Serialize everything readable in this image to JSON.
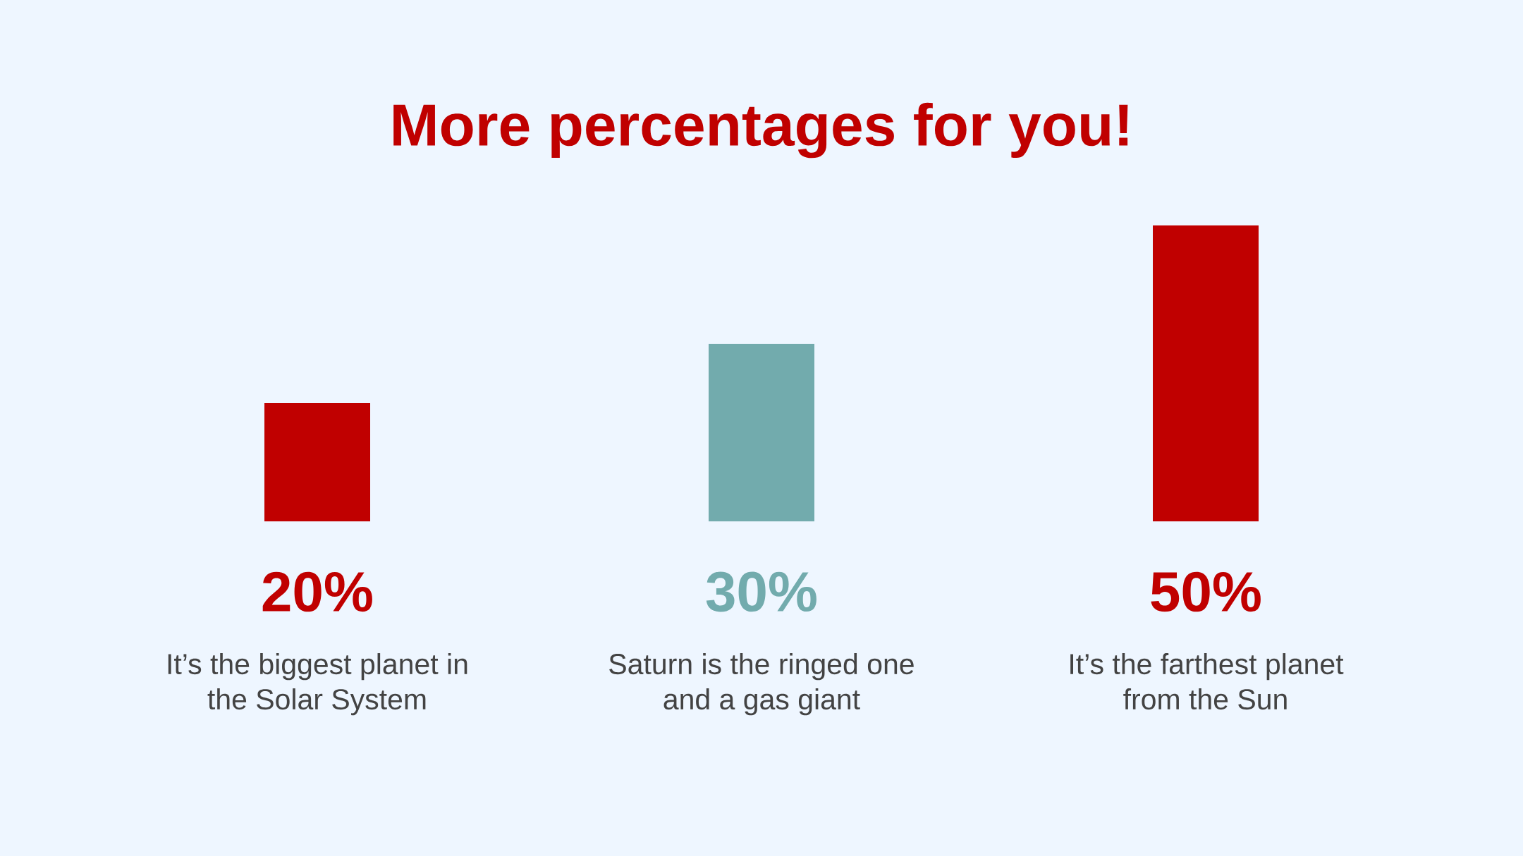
{
  "chart_data": {
    "type": "bar",
    "title": "More percentages for you!",
    "categories": [
      "It’s the biggest planet in the Solar System",
      "Saturn is the ringed one and a gas giant",
      "It’s the farthest planet from the Sun"
    ],
    "values": [
      20,
      30,
      50
    ],
    "colors": [
      "#c00000",
      "#72abad",
      "#c00000"
    ],
    "value_labels": [
      "20%",
      "30%",
      "50%"
    ]
  }
}
